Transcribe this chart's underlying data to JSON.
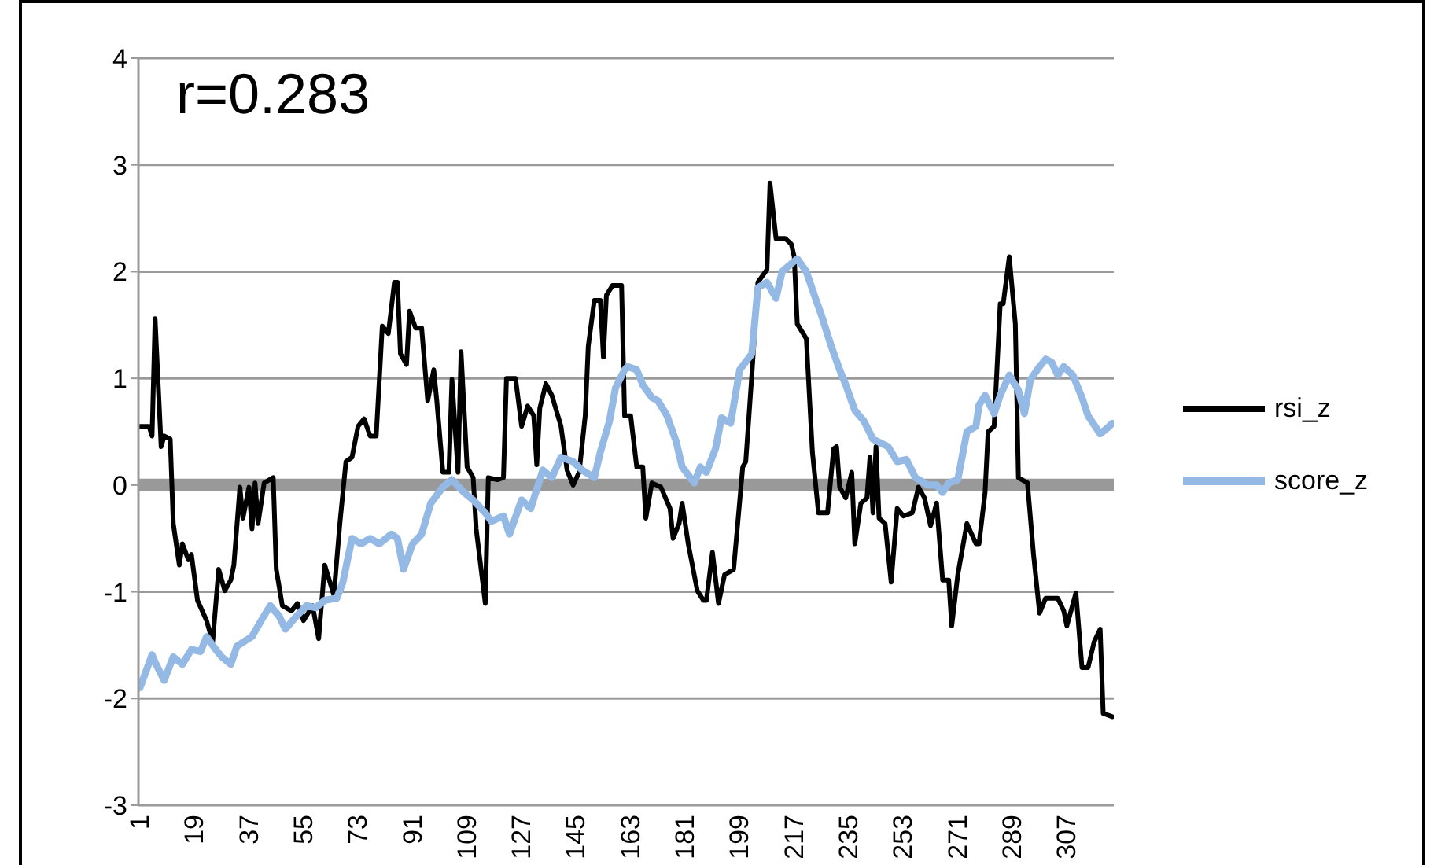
{
  "chart_data": {
    "type": "line",
    "annotations": [
      "r=0.283"
    ],
    "xlim": [
      0.5,
      322.5
    ],
    "xticks": [
      1,
      19,
      37,
      55,
      73,
      91,
      109,
      127,
      145,
      163,
      181,
      199,
      217,
      235,
      253,
      271,
      289,
      307
    ],
    "ylim": [
      -3,
      4
    ],
    "yticks": [
      -3,
      -2,
      -1,
      0,
      1,
      2,
      3,
      4
    ],
    "grid": "y",
    "legend": "right",
    "marker": "none",
    "line_style": "solid",
    "series": [
      {
        "name": "rsi_z",
        "color": "#000000",
        "x": [
          1,
          4,
          5,
          6,
          8,
          9,
          11,
          12,
          14,
          15,
          17,
          18,
          20,
          23,
          25,
          27,
          29,
          31,
          32,
          34,
          35,
          37,
          38,
          39,
          40,
          42,
          45,
          46,
          48,
          51,
          53,
          55,
          58,
          60,
          62,
          65,
          67,
          69,
          71,
          73,
          75,
          77,
          79,
          81,
          83,
          85,
          86,
          87,
          89,
          90,
          92,
          94,
          96,
          98,
          99,
          101,
          103,
          104,
          106,
          107,
          109,
          111,
          112,
          115,
          116,
          119,
          121,
          122,
          125,
          127,
          129,
          131,
          132,
          133,
          135,
          137,
          140,
          142,
          144,
          146,
          148,
          149,
          151,
          153,
          154,
          155,
          157,
          160,
          161,
          163,
          165,
          167,
          168,
          170,
          173,
          176,
          177,
          179,
          180,
          182,
          185,
          187,
          188,
          190,
          192,
          194,
          197,
          200,
          201,
          203,
          205,
          208,
          209,
          211,
          214,
          216,
          217,
          218,
          221,
          223,
          225,
          228,
          230,
          231,
          232,
          234,
          236,
          237,
          239,
          241,
          242,
          243,
          244,
          245,
          247,
          249,
          251,
          253,
          256,
          258,
          260,
          262,
          264,
          266,
          268,
          269,
          271,
          274,
          277,
          278,
          280,
          281,
          283,
          285,
          286,
          288,
          290,
          291,
          294,
          296,
          298,
          300,
          304,
          306,
          307,
          310,
          312,
          314,
          316,
          318,
          319,
          322
        ],
        "values": [
          0.55,
          0.55,
          0.46,
          1.56,
          0.36,
          0.46,
          0.43,
          -0.36,
          -0.75,
          -0.55,
          -0.7,
          -0.65,
          -1.08,
          -1.27,
          -1.47,
          -0.79,
          -0.99,
          -0.89,
          -0.75,
          -0.02,
          -0.31,
          -0.02,
          -0.41,
          0.02,
          -0.36,
          0.02,
          0.07,
          -0.79,
          -1.13,
          -1.18,
          -1.11,
          -1.27,
          -1.13,
          -1.44,
          -0.75,
          -1.03,
          -0.36,
          0.22,
          0.26,
          0.55,
          0.62,
          0.46,
          0.46,
          1.49,
          1.42,
          1.9,
          1.9,
          1.23,
          1.13,
          1.63,
          1.47,
          1.47,
          0.79,
          1.08,
          0.79,
          0.12,
          0.12,
          0.99,
          0.12,
          1.25,
          0.17,
          0.07,
          -0.41,
          -1.11,
          0.07,
          0.05,
          0.07,
          1.0,
          1.0,
          0.55,
          0.74,
          0.65,
          0.19,
          0.72,
          0.95,
          0.84,
          0.55,
          0.14,
          0,
          0.12,
          0.65,
          1.3,
          1.73,
          1.73,
          1.2,
          1.78,
          1.87,
          1.87,
          0.65,
          0.65,
          0.17,
          0.17,
          -0.31,
          0.02,
          -0.02,
          -0.22,
          -0.5,
          -0.36,
          -0.17,
          -0.55,
          -0.99,
          -1.08,
          -1.08,
          -0.63,
          -1.11,
          -0.84,
          -0.79,
          0.17,
          0.22,
          1.03,
          1.9,
          2.02,
          2.83,
          2.31,
          2.31,
          2.26,
          2.14,
          1.51,
          1.37,
          0.31,
          -0.26,
          -0.26,
          0.34,
          0.36,
          -0.02,
          -0.12,
          0.12,
          -0.55,
          -0.17,
          -0.12,
          0.26,
          -0.26,
          0.36,
          -0.31,
          -0.36,
          -0.91,
          -0.22,
          -0.29,
          -0.26,
          -0.02,
          -0.12,
          -0.38,
          -0.17,
          -0.89,
          -0.89,
          -1.32,
          -0.84,
          -0.36,
          -0.55,
          -0.55,
          -0.07,
          0.5,
          0.55,
          1.7,
          1.7,
          2.14,
          1.51,
          0.07,
          0.02,
          -0.65,
          -1.2,
          -1.06,
          -1.06,
          -1.18,
          -1.32,
          -1.01,
          -1.71,
          -1.71,
          -1.47,
          -1.35,
          -2.14,
          -2.17
        ]
      },
      {
        "name": "score_z",
        "color": "#95b9e5",
        "x": [
          1,
          5,
          6,
          9,
          12,
          15,
          18,
          21,
          23,
          26,
          28,
          31,
          33,
          38,
          41,
          44,
          47,
          49,
          52,
          56,
          59,
          62,
          66,
          68,
          71,
          74,
          77,
          80,
          84,
          86,
          88,
          91,
          94,
          97,
          101,
          104,
          108,
          111,
          115,
          117,
          121,
          123,
          127,
          130,
          134,
          137,
          140,
          144,
          147,
          151,
          153,
          156,
          158,
          161,
          162,
          165,
          167,
          170,
          172,
          175,
          178,
          180,
          184,
          186,
          188,
          191,
          193,
          196,
          199,
          203,
          205,
          208,
          211,
          213,
          215,
          218,
          221,
          224,
          226,
          229,
          232,
          234,
          237,
          240,
          243,
          248,
          251,
          254,
          257,
          261,
          264,
          266,
          268,
          271,
          274,
          277,
          278,
          280,
          283,
          285,
          288,
          291,
          293,
          295,
          298,
          300,
          302,
          304,
          306,
          309,
          312,
          314,
          318,
          321,
          322
        ],
        "values": [
          -1.9,
          -1.59,
          -1.66,
          -1.83,
          -1.61,
          -1.68,
          -1.54,
          -1.56,
          -1.42,
          -1.54,
          -1.61,
          -1.68,
          -1.51,
          -1.42,
          -1.27,
          -1.13,
          -1.23,
          -1.35,
          -1.25,
          -1.13,
          -1.15,
          -1.08,
          -1.06,
          -0.91,
          -0.5,
          -0.55,
          -0.5,
          -0.55,
          -0.46,
          -0.5,
          -0.79,
          -0.55,
          -0.46,
          -0.17,
          -0.02,
          0.05,
          -0.07,
          -0.14,
          -0.26,
          -0.34,
          -0.29,
          -0.46,
          -0.14,
          -0.22,
          0.14,
          0.07,
          0.26,
          0.22,
          0.14,
          0.07,
          0.31,
          0.6,
          0.91,
          1.08,
          1.11,
          1.08,
          0.94,
          0.82,
          0.79,
          0.65,
          0.41,
          0.17,
          0.02,
          0.17,
          0.12,
          0.34,
          0.63,
          0.58,
          1.08,
          1.23,
          1.85,
          1.9,
          1.75,
          2.0,
          2.05,
          2.12,
          2.0,
          1.75,
          1.59,
          1.32,
          1.08,
          0.94,
          0.7,
          0.6,
          0.43,
          0.36,
          0.22,
          0.24,
          0.07,
          0,
          0,
          -0.07,
          0.02,
          0.05,
          0.5,
          0.55,
          0.75,
          0.84,
          0.67,
          0.84,
          1.03,
          0.89,
          0.67,
          0.99,
          1.11,
          1.18,
          1.15,
          1.03,
          1.11,
          1.03,
          0.82,
          0.65,
          0.48,
          0.55,
          0.58
        ]
      }
    ]
  }
}
